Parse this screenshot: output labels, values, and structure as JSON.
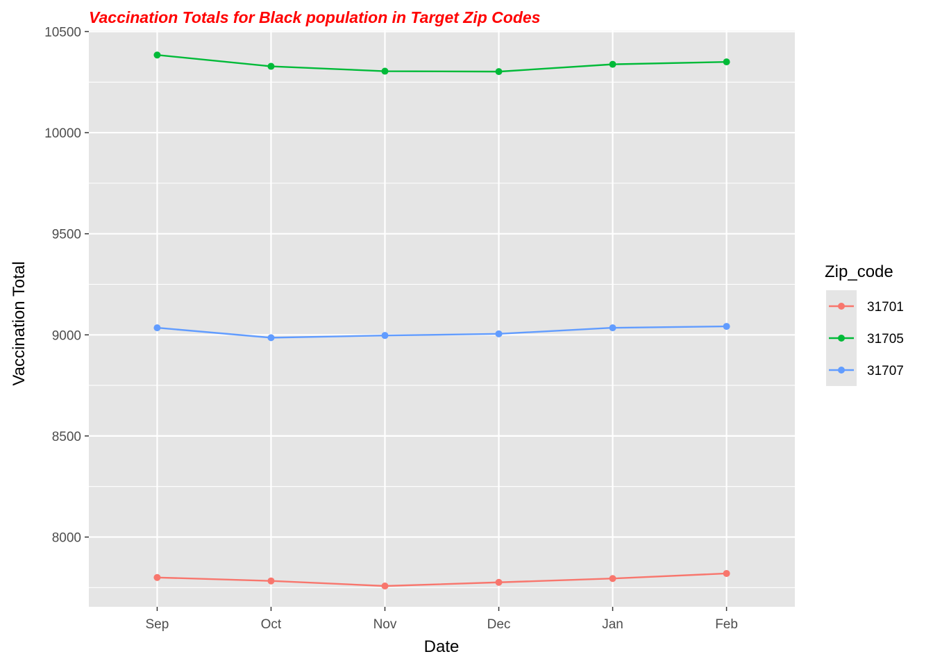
{
  "colors": {
    "panel_bg": "#e5e5e5",
    "grid": "#ffffff",
    "title": "#ff0000"
  },
  "chart_data": {
    "type": "line",
    "title": "Vaccination Totals for Black population in Target Zip Codes",
    "xlabel": "Date",
    "ylabel": "Vaccination Total",
    "categories": [
      "Sep",
      "Oct",
      "Nov",
      "Dec",
      "Jan",
      "Feb"
    ],
    "ylim": [
      7655,
      10505
    ],
    "yticks": [
      8000,
      8500,
      9000,
      9500,
      10000,
      10500
    ],
    "grid": true,
    "legend": {
      "title": "Zip_code",
      "position": "right"
    },
    "series": [
      {
        "name": "31701",
        "color": "#f8766d",
        "values": [
          7800,
          7783,
          7758,
          7776,
          7795,
          7820
        ]
      },
      {
        "name": "31705",
        "color": "#00ba38",
        "values": [
          10384,
          10328,
          10304,
          10302,
          10338,
          10350
        ]
      },
      {
        "name": "31707",
        "color": "#619cff",
        "values": [
          9035,
          8986,
          8997,
          9005,
          9035,
          9042
        ]
      }
    ]
  }
}
